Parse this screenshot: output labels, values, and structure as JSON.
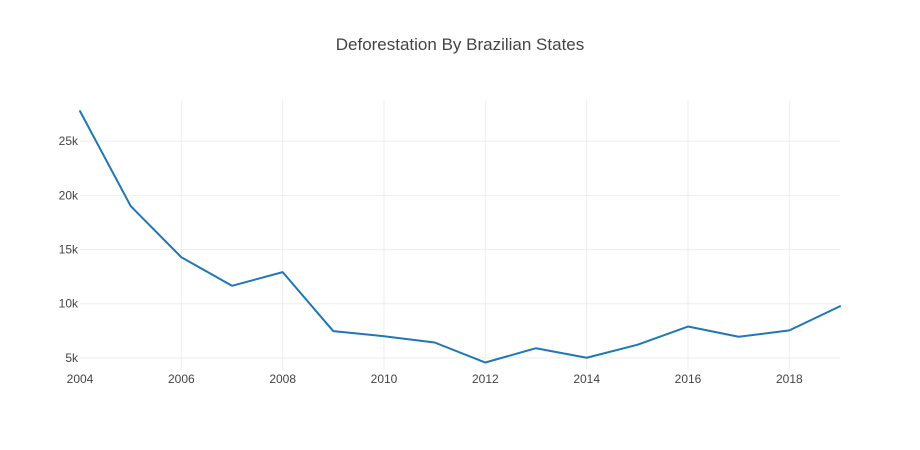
{
  "chart_data": {
    "type": "line",
    "title": "Deforestation By Brazilian States",
    "xlabel": "",
    "ylabel": "",
    "x": [
      2004,
      2005,
      2006,
      2007,
      2008,
      2009,
      2010,
      2011,
      2012,
      2013,
      2014,
      2015,
      2016,
      2017,
      2018,
      2019
    ],
    "series": [
      {
        "values": [
          27772,
          19014,
          14286,
          11651,
          12911,
          7464,
          7000,
          6418,
          4571,
          5891,
          5012,
          6207,
          7893,
          6947,
          7536,
          9762
        ],
        "color": "#1f77b4"
      }
    ],
    "xlim": [
      2004,
      2019
    ],
    "ylim": [
      3880,
      28800
    ],
    "x_ticks": [
      2004,
      2006,
      2008,
      2010,
      2012,
      2014,
      2016,
      2018
    ],
    "x_tick_labels": [
      "2004",
      "2006",
      "2008",
      "2010",
      "2012",
      "2014",
      "2016",
      "2018"
    ],
    "y_ticks": [
      5000,
      10000,
      15000,
      20000,
      25000
    ],
    "y_tick_labels": [
      "5k",
      "10k",
      "15k",
      "20k",
      "25k"
    ],
    "grid": true,
    "legend": false
  }
}
